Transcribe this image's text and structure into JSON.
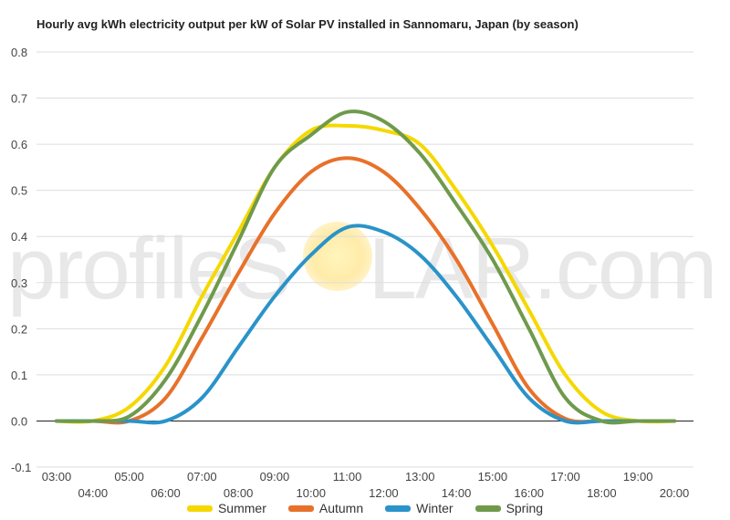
{
  "chart_data": {
    "type": "line",
    "title": "Hourly avg kWh electricity output per kW of Solar PV installed in Sannomaru, Japan (by season)",
    "xlabel": "",
    "ylabel": "",
    "ylim": [
      -0.1,
      0.8
    ],
    "yticks": [
      "-0.1",
      "0.0",
      "0.1",
      "0.2",
      "0.3",
      "0.4",
      "0.5",
      "0.6",
      "0.7",
      "0.8"
    ],
    "categories": [
      "03:00",
      "04:00",
      "05:00",
      "06:00",
      "07:00",
      "08:00",
      "09:00",
      "10:00",
      "11:00",
      "12:00",
      "13:00",
      "14:00",
      "15:00",
      "16:00",
      "17:00",
      "18:00",
      "19:00",
      "20:00"
    ],
    "grid": true,
    "legend_position": "bottom",
    "series": [
      {
        "name": "Summer",
        "color": "#f5d800",
        "values": [
          0.0,
          0.0,
          0.03,
          0.12,
          0.27,
          0.41,
          0.55,
          0.63,
          0.64,
          0.63,
          0.6,
          0.5,
          0.38,
          0.24,
          0.1,
          0.02,
          0.0,
          0.0
        ]
      },
      {
        "name": "Autumn",
        "color": "#e8712a",
        "values": [
          0.0,
          0.0,
          0.0,
          0.05,
          0.18,
          0.32,
          0.45,
          0.54,
          0.57,
          0.54,
          0.46,
          0.35,
          0.21,
          0.07,
          0.005,
          0.0,
          0.0,
          0.0
        ]
      },
      {
        "name": "Winter",
        "color": "#2a93c9",
        "values": [
          0.0,
          0.0,
          0.0,
          0.0,
          0.05,
          0.16,
          0.27,
          0.36,
          0.42,
          0.41,
          0.36,
          0.27,
          0.16,
          0.05,
          0.0,
          0.0,
          0.0,
          0.0
        ]
      },
      {
        "name": "Spring",
        "color": "#6f9a4c",
        "values": [
          0.0,
          0.0,
          0.01,
          0.09,
          0.23,
          0.39,
          0.55,
          0.62,
          0.67,
          0.65,
          0.58,
          0.47,
          0.35,
          0.2,
          0.05,
          0.0,
          0.0,
          0.0
        ]
      }
    ]
  },
  "watermark": {
    "left": "profileS",
    "right": "LAR.com"
  }
}
